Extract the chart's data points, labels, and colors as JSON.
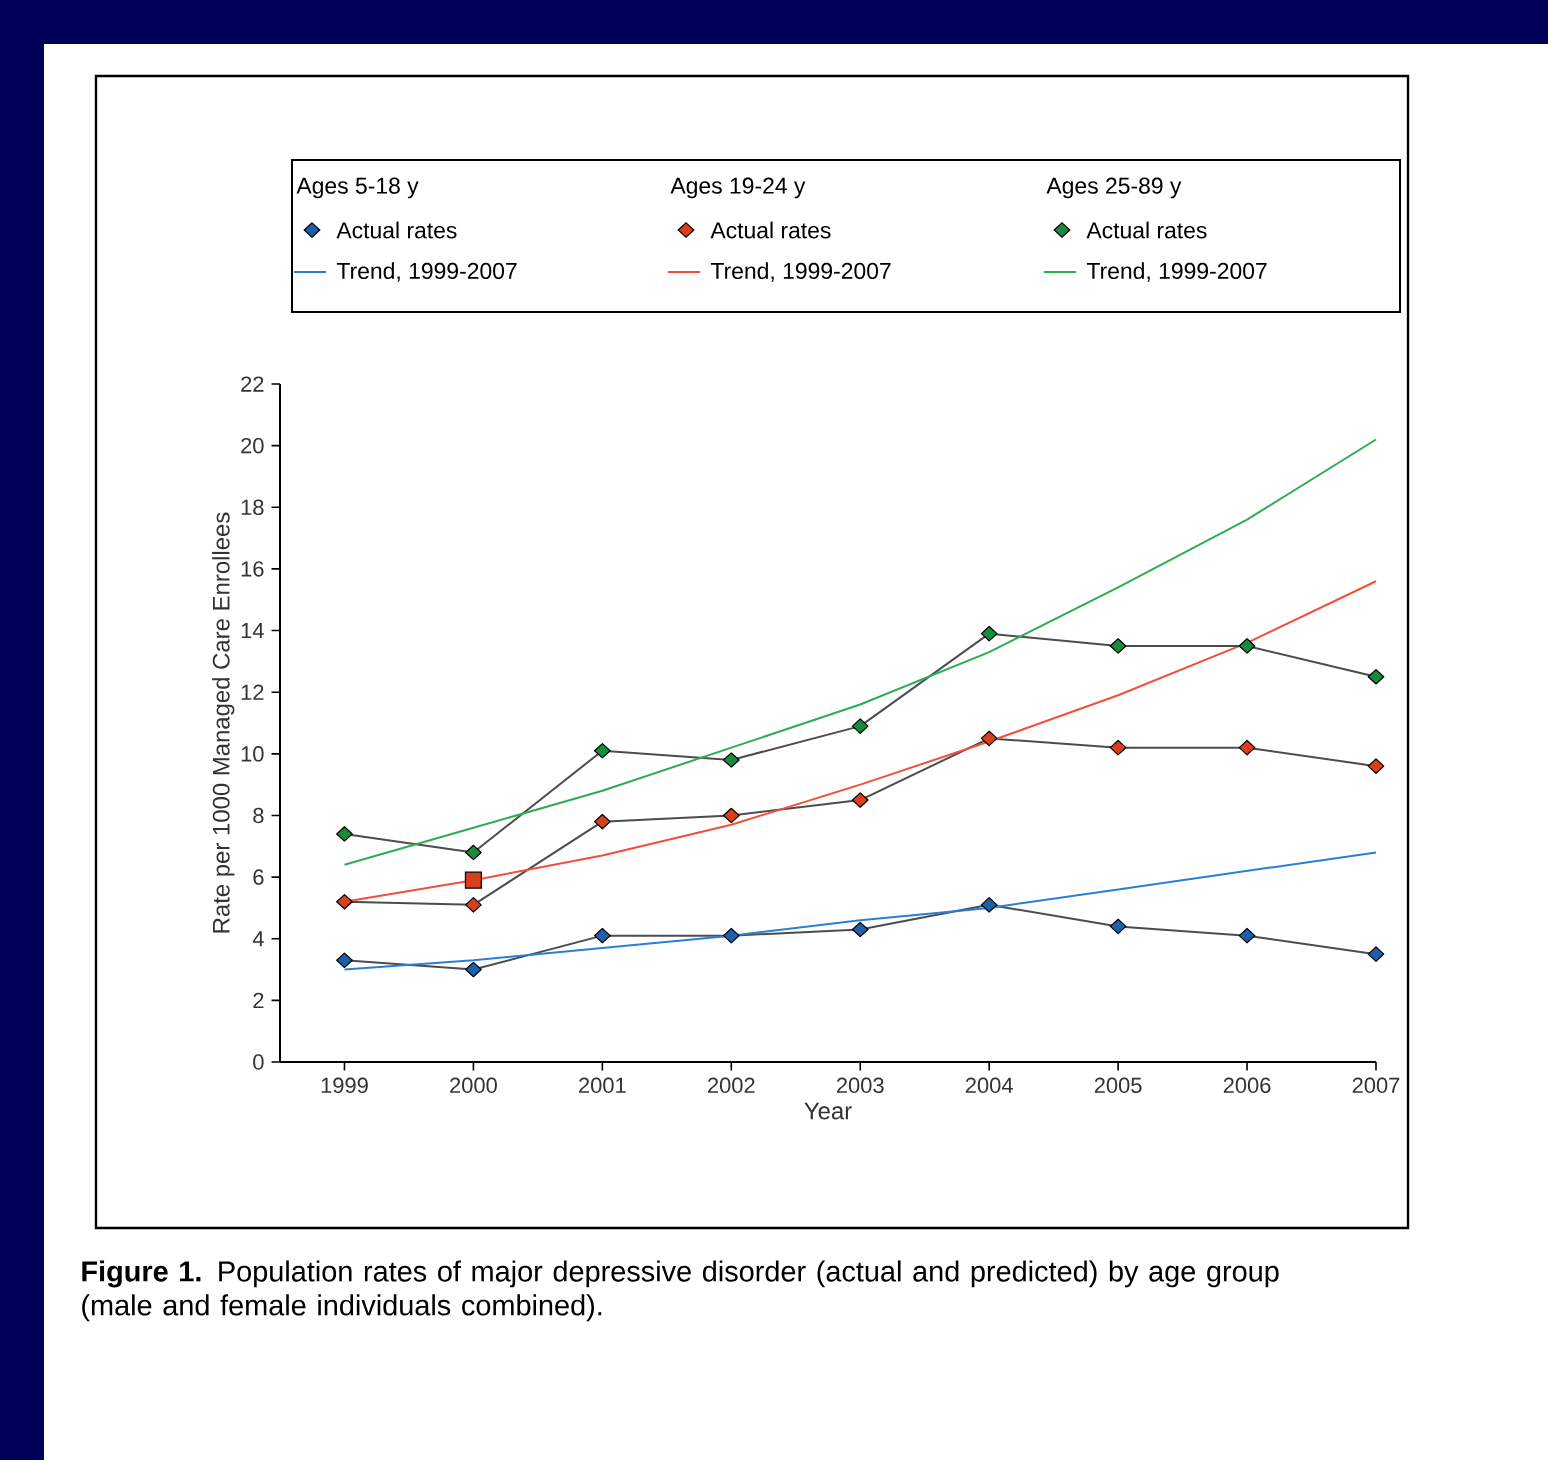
{
  "chart_data": {
    "type": "line",
    "xlabel": "Year",
    "ylabel": "Rate per 1000 Managed Care Enrollees",
    "x": [
      1999,
      2000,
      2001,
      2002,
      2003,
      2004,
      2005,
      2006,
      2007
    ],
    "xlim": [
      1998.5,
      2007
    ],
    "xticks": [
      1999,
      2000,
      2001,
      2002,
      2003,
      2004,
      2005,
      2006,
      2007
    ],
    "ylim": [
      0,
      22
    ],
    "yticks": [
      0,
      2,
      4,
      6,
      8,
      10,
      12,
      14,
      16,
      18,
      20,
      22
    ],
    "legend": "top",
    "annotations": [
      "Ages 5-18 y",
      "Ages 19-24 y",
      "Ages 25-89 y",
      "**Figure 1.** Population rates of major depressive disorder (actual and predicted) by age group (male and female individuals combined)."
    ],
    "series": [
      {
        "name": "Actual rates",
        "marker": "diamond",
        "color": "#1f5fa8",
        "values": [
          3.3,
          3.0,
          4.1,
          4.1,
          4.3,
          5.1,
          4.4,
          4.1,
          3.5
        ]
      },
      {
        "name": "Trend, 1999-2007",
        "marker": "none",
        "color": "#2a7fd0",
        "values": [
          3.0,
          3.3,
          3.7,
          4.1,
          4.6,
          5.0,
          5.6,
          6.2,
          6.8
        ]
      },
      {
        "name": "Actual rates",
        "marker": "diamond",
        "color": "#d8401c",
        "values": [
          5.2,
          5.1,
          7.8,
          8.0,
          8.5,
          10.5,
          10.2,
          10.2,
          9.6
        ]
      },
      {
        "name": "Trend, 1999-2007",
        "marker": "none",
        "color": "#f0503a",
        "values": [
          5.2,
          5.9,
          6.7,
          7.7,
          9.0,
          10.4,
          11.9,
          13.6,
          15.6
        ]
      },
      {
        "name": "Actual rates",
        "marker": "diamond",
        "color": "#1a8a3c",
        "values": [
          7.4,
          6.8,
          10.1,
          9.8,
          10.9,
          13.9,
          13.5,
          13.5,
          12.5
        ]
      },
      {
        "name": "Trend, 1999-2007",
        "marker": "none",
        "color": "#2aae50",
        "values": [
          6.4,
          7.6,
          8.8,
          10.2,
          11.6,
          13.3,
          15.4,
          17.6,
          20.2
        ]
      },
      {
        "type": "scatter",
        "marker": "square",
        "color": "#d8401c",
        "values": [
          null,
          5.9,
          null,
          null,
          null,
          null,
          null,
          null,
          null
        ]
      }
    ]
  }
}
